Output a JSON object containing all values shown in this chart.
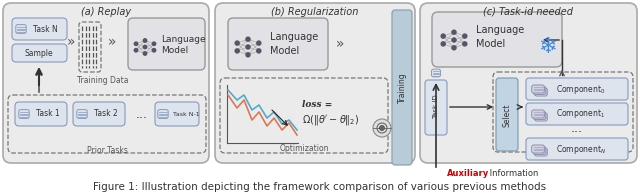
{
  "fig_width": 6.4,
  "fig_height": 1.95,
  "dpi": 100,
  "bg_color": "#ffffff",
  "panel_bg": "#eeeeee",
  "panel_border": "#aaaaaa",
  "caption": "Figure 1: Illustration depicting the framework comparison of various previous methods",
  "caption_fontsize": 7.5,
  "panel_titles": [
    "(a) Replay",
    "(b) Regularization",
    "(c) Task-id needed"
  ],
  "auxiliary_color": "#cc0000",
  "lm_box_color": "#e8e8e8",
  "lm_box_ec": "#999999",
  "task_box_color": "#dde4ee",
  "task_box_ec": "#8899bb",
  "select_box_color": "#c8d8e8",
  "training_bar_color": "#aabbcc",
  "component_icon_color": "#c8c8d8"
}
